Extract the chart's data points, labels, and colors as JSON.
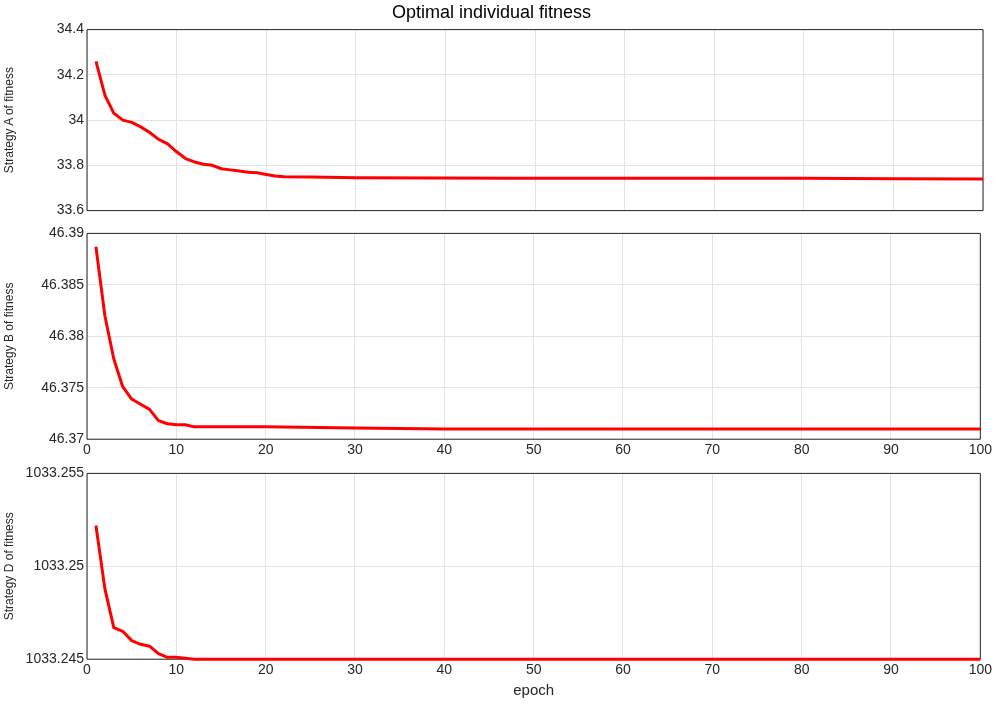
{
  "chart_data": [
    {
      "type": "line",
      "title": "Optimal individual fitness",
      "ylabel": "Strategy A of fitness",
      "x": [
        1,
        2,
        3,
        4,
        5,
        6,
        7,
        8,
        9,
        10,
        11,
        12,
        13,
        14,
        15,
        16,
        17,
        18,
        19,
        20,
        21,
        22,
        25,
        30,
        40,
        50,
        60,
        70,
        80,
        90,
        100
      ],
      "series": [
        {
          "color": "#ff0000",
          "values": [
            34.26,
            34.11,
            34.03,
            34.0,
            33.99,
            33.97,
            33.945,
            33.915,
            33.895,
            33.86,
            33.83,
            33.815,
            33.805,
            33.8,
            33.785,
            33.78,
            33.775,
            33.77,
            33.767,
            33.76,
            33.753,
            33.75,
            33.748,
            33.745,
            33.744,
            33.743,
            33.743,
            33.743,
            33.743,
            33.741,
            33.74
          ]
        }
      ],
      "xlim": [
        0,
        100
      ],
      "xticks": [
        0,
        10,
        20,
        30,
        40,
        50,
        60,
        70,
        80,
        90,
        100
      ],
      "ylim": [
        33.6,
        34.4
      ],
      "yticks": [
        33.6,
        33.8,
        34,
        34.2,
        34.4
      ],
      "grid": true,
      "legend": false,
      "marker": "none",
      "line_style": "solid",
      "tick_labels": "y"
    },
    {
      "type": "line",
      "ylabel": "Strategy B of fitness",
      "x": [
        1,
        2,
        3,
        4,
        5,
        6,
        7,
        8,
        9,
        10,
        11,
        12,
        15,
        20,
        30,
        40,
        50,
        60,
        70,
        80,
        90,
        100
      ],
      "series": [
        {
          "color": "#ff0000",
          "values": [
            46.3887,
            46.382,
            46.3778,
            46.3751,
            46.3739,
            46.3734,
            46.3729,
            46.3718,
            46.3715,
            46.3714,
            46.3714,
            46.3712,
            46.3712,
            46.3712,
            46.3711,
            46.371,
            46.371,
            46.371,
            46.371,
            46.371,
            46.371,
            46.371
          ]
        }
      ],
      "xlim": [
        0,
        100
      ],
      "xticks": [
        0,
        10,
        20,
        30,
        40,
        50,
        60,
        70,
        80,
        90,
        100
      ],
      "ylim": [
        46.37,
        46.39
      ],
      "yticks": [
        46.37,
        46.375,
        46.38,
        46.385,
        46.39
      ],
      "grid": true,
      "legend": false,
      "marker": "none",
      "line_style": "solid"
    },
    {
      "type": "line",
      "ylabel": "Strategy D of fitness",
      "xlabel": "epoch",
      "x": [
        1,
        2,
        3,
        4,
        5,
        6,
        7,
        8,
        9,
        10,
        12,
        20,
        30,
        40,
        50,
        60,
        70,
        80,
        90,
        100
      ],
      "series": [
        {
          "color": "#ff0000",
          "values": [
            1033.2522,
            1033.2488,
            1033.2467,
            1033.2465,
            1033.246,
            1033.2458,
            1033.2457,
            1033.2453,
            1033.2451,
            1033.2451,
            1033.245,
            1033.245,
            1033.245,
            1033.245,
            1033.245,
            1033.245,
            1033.245,
            1033.245,
            1033.245,
            1033.245
          ]
        }
      ],
      "xlim": [
        0,
        100
      ],
      "xticks": [
        0,
        10,
        20,
        30,
        40,
        50,
        60,
        70,
        80,
        90,
        100
      ],
      "ylim": [
        1033.245,
        1033.255
      ],
      "yticks": [
        1033.245,
        1033.25,
        1033.255
      ],
      "grid": true,
      "legend": false,
      "marker": "none",
      "line_style": "solid"
    }
  ]
}
